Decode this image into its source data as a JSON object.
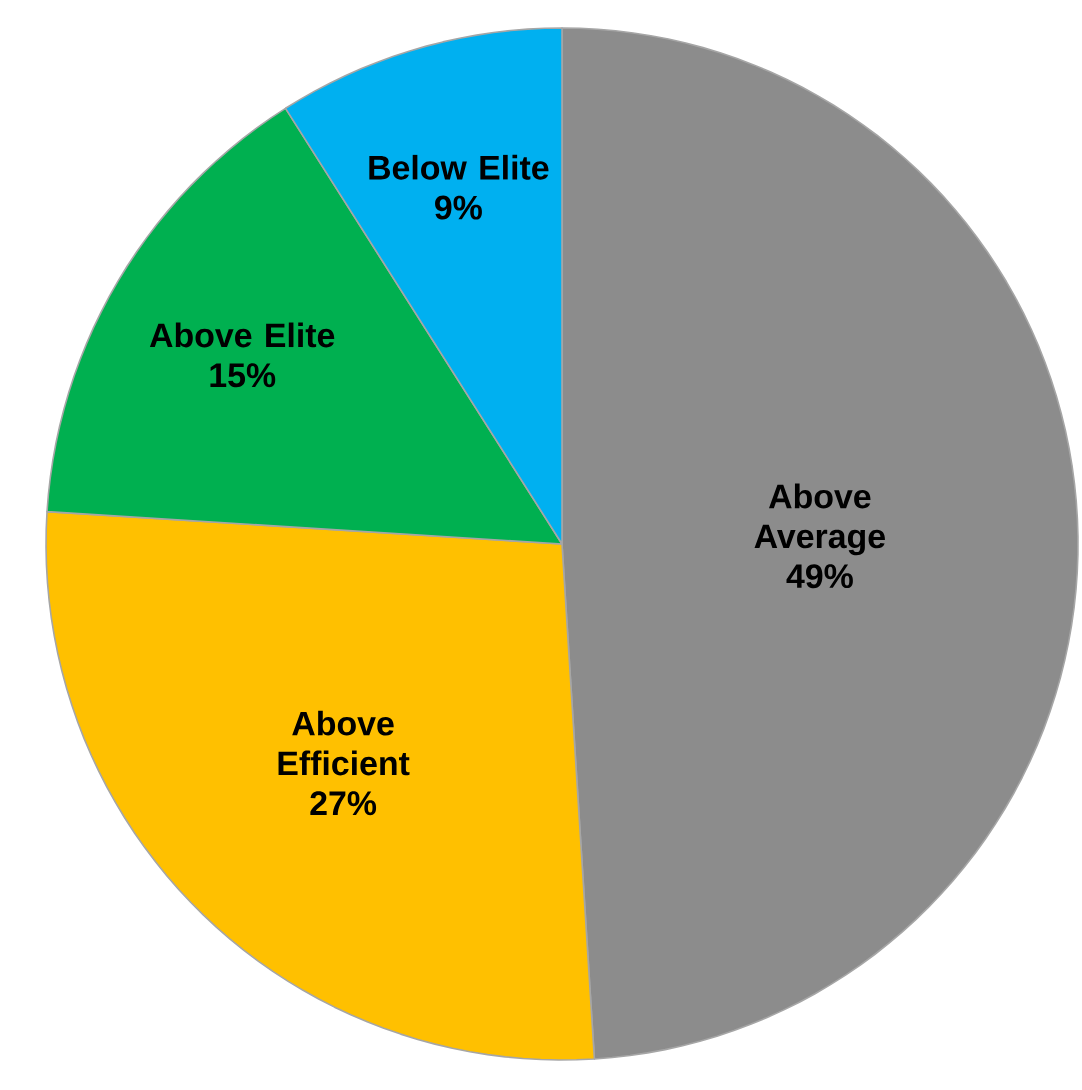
{
  "chart_data": {
    "type": "pie",
    "categories": [
      "Above Average",
      "Above Efficient",
      "Above Elite",
      "Below Elite"
    ],
    "values": [
      49,
      27,
      15,
      9
    ],
    "colors": [
      "#8c8c8c",
      "#ffc000",
      "#00b050",
      "#00b0f0"
    ],
    "value_labels": [
      "49%",
      "27%",
      "15%",
      "9%"
    ]
  }
}
